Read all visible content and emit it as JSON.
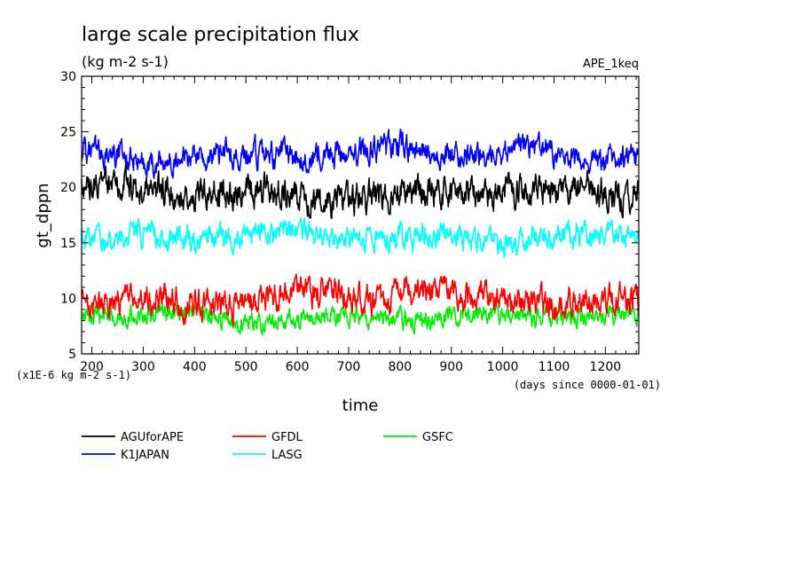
{
  "chart_data": {
    "type": "line",
    "title": "large scale precipitation flux",
    "subtitle": "(kg m-2 s-1)",
    "experiment_label": "APE_1keq",
    "xlabel": "time",
    "ylabel": "gt_dppn",
    "x_unit_note": "(days since 0000-01-01)",
    "y_scale_note": "(x1E-6 kg m-2 s-1)",
    "xlim": [
      180,
      1265
    ],
    "ylim": [
      5,
      30
    ],
    "x_ticks": [
      200,
      300,
      400,
      500,
      600,
      700,
      800,
      900,
      1000,
      1100,
      1200
    ],
    "y_ticks": [
      5,
      10,
      15,
      20,
      25,
      30
    ],
    "grid": false,
    "legend_position": "bottom",
    "series": [
      {
        "name": "AGUforAPE",
        "color": "#000000",
        "mean": 19.5,
        "spread": 1.3,
        "min": 15.5,
        "max": 23.5
      },
      {
        "name": "GFDL",
        "color": "#ff0000",
        "mean": 10.0,
        "spread": 1.2,
        "min": 6.0,
        "max": 15.0
      },
      {
        "name": "GSFC",
        "color": "#00ee00",
        "mean": 8.3,
        "spread": 0.8,
        "min": 5.7,
        "max": 11.0
      },
      {
        "name": "K1JAPAN",
        "color": "#0000ff",
        "mean": 23.0,
        "spread": 1.1,
        "min": 20.5,
        "max": 26.5
      },
      {
        "name": "LASG",
        "color": "#00ffff",
        "mean": 15.5,
        "spread": 1.0,
        "min": 12.8,
        "max": 18.0
      }
    ],
    "sample_interval_days": 1
  }
}
